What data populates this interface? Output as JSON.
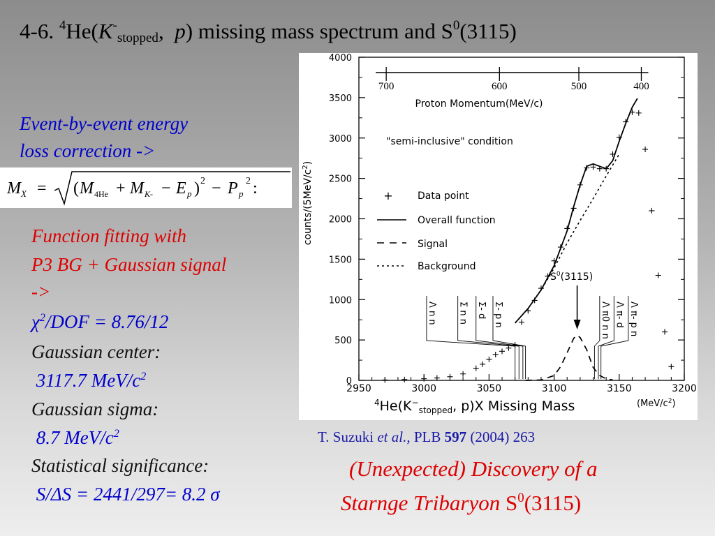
{
  "slide": {
    "title": {
      "prefix": "4-6. ",
      "sup_mass": "4",
      "he_open": "He(",
      "k": "K",
      "k_sup": "-",
      "k_sub": "stopped",
      "comma": ",  ",
      "p": "p",
      "rest": ") missing mass spectrum and S",
      "s_sup": "0",
      "tail": "(3115)"
    },
    "energy": {
      "line1": "Event-by-event energy",
      "line2": "loss correction ->"
    },
    "formula": {
      "lhs": "M",
      "lhs_sub": "X",
      "eq": " = ",
      "m4": "M",
      "m4_sub": "4He",
      "plus": " + ",
      "mk": "M",
      "mk_sub": "K-",
      "minus": " − ",
      "ep": "E",
      "ep_sub": "p",
      "close": ")",
      "sq": "2",
      "minus2": " − ",
      "pp": "P",
      "pp_sub": "p",
      "open": "(",
      "colon": ":"
    },
    "fit": {
      "line1": "Function fitting with",
      "line2": "P3 BG + Gaussian signal",
      "line3": "->",
      "chi_label": "χ",
      "chi_sup": "2",
      "chi_rest": "/DOF = 8.76/12",
      "center_label": "Gaussian center:",
      "center_value": " 3117.7 MeV/c",
      "center_sup": "2",
      "sigma_label": "Gaussian sigma:",
      "sigma_value": " 8.7 MeV/c",
      "sigma_sup": "2",
      "sig_label": "Statistical significance:",
      "sig_value": " S/ΔS = 2441/297= 8.2 ",
      "sig_sigma": "σ"
    },
    "citation": {
      "author": "T. Suzuki ",
      "etal": "et al.,",
      "journal": " PLB ",
      "volume": "597",
      "rest": " (2004) 263"
    },
    "discovery": {
      "line1": "(Unexpected) Discovery of a",
      "line2": "Starnge Tribaryon ",
      "s": "S",
      "s_sup": "0",
      "tail": "(3115)"
    }
  },
  "chart_data": {
    "type": "scatter",
    "xlim": [
      2950,
      3200
    ],
    "ylim": [
      0,
      4000
    ],
    "x_ticks": [
      2950,
      3000,
      3050,
      3100,
      3150,
      3200
    ],
    "y_ticks": [
      0,
      500,
      1000,
      1500,
      2000,
      2500,
      3000,
      3500,
      4000
    ],
    "x_tick_labels": [
      "2950",
      "3000",
      "3050",
      "3100",
      "3150",
      "3200"
    ],
    "y_tick_labels": [
      "0",
      "500",
      "1000",
      "1500",
      "2000",
      "2500",
      "3000",
      "3500",
      "4000"
    ],
    "xlabel_prefix": "4",
    "xlabel_main": "He(K",
    "xlabel_sup": "−",
    "xlabel_sub": "stopped",
    "xlabel_rest": ", p)X Missing Mass",
    "xlabel_unit": "(MeV/c",
    "xlabel_unit_sup": "2",
    "xlabel_unit_close": ")",
    "ylabel": "counts/(5MeV/c",
    "ylabel_sup": "2",
    "ylabel_close": ")",
    "top_axis": {
      "label": "Proton Momentum(MeV/c)",
      "ticks": [
        {
          "label": "700",
          "mass": 2971
        },
        {
          "label": "600",
          "mass": 3058
        },
        {
          "label": "500",
          "mass": 3119
        },
        {
          "label": "400",
          "mass": 3167
        }
      ]
    },
    "condition": "\"semi-inclusive\" condition",
    "legend": {
      "data": "Data point",
      "overall": "Overall function",
      "signal": "Signal",
      "background": "Background"
    },
    "s0_label": "S",
    "s0_sup": "0",
    "s0_rest": "(3115)",
    "s0_arrow_x": 3117.7,
    "thresholds": [
      {
        "label": "Λ n n",
        "x": 3070,
        "text_x": 3002
      },
      {
        "label": "Σ n n",
        "x": 3073,
        "text_x": 3026
      },
      {
        "label": "Σ- d",
        "x": 3076,
        "text_x": 3040
      },
      {
        "label": "Σ- p n",
        "x": 3078,
        "text_x": 3053
      },
      {
        "label": "Λ π0 n n",
        "x": 3131,
        "text_x": 3135
      },
      {
        "label": "Λ π- d",
        "x": 3134,
        "text_x": 3146
      },
      {
        "label": "Λ π- p n",
        "x": 3136,
        "text_x": 3157
      }
    ],
    "data_points": [
      {
        "x": 2970,
        "y": 5
      },
      {
        "x": 2985,
        "y": 10
      },
      {
        "x": 3000,
        "y": 20
      },
      {
        "x": 3010,
        "y": 30
      },
      {
        "x": 3020,
        "y": 45
      },
      {
        "x": 3030,
        "y": 80
      },
      {
        "x": 3040,
        "y": 150
      },
      {
        "x": 3045,
        "y": 200
      },
      {
        "x": 3050,
        "y": 260
      },
      {
        "x": 3055,
        "y": 320
      },
      {
        "x": 3060,
        "y": 360
      },
      {
        "x": 3065,
        "y": 400
      },
      {
        "x": 3070,
        "y": 440
      },
      {
        "x": 3075,
        "y": 720
      },
      {
        "x": 3080,
        "y": 860
      },
      {
        "x": 3085,
        "y": 990
      },
      {
        "x": 3090,
        "y": 1140
      },
      {
        "x": 3095,
        "y": 1290
      },
      {
        "x": 3100,
        "y": 1480
      },
      {
        "x": 3105,
        "y": 1650
      },
      {
        "x": 3110,
        "y": 1880
      },
      {
        "x": 3115,
        "y": 2130
      },
      {
        "x": 3120,
        "y": 2420
      },
      {
        "x": 3125,
        "y": 2630
      },
      {
        "x": 3130,
        "y": 2640
      },
      {
        "x": 3135,
        "y": 2620
      },
      {
        "x": 3140,
        "y": 2620
      },
      {
        "x": 3145,
        "y": 2800
      },
      {
        "x": 3150,
        "y": 3010
      },
      {
        "x": 3155,
        "y": 3200
      },
      {
        "x": 3160,
        "y": 3320
      },
      {
        "x": 3165,
        "y": 3310
      },
      {
        "x": 3170,
        "y": 2860
      },
      {
        "x": 3175,
        "y": 2100
      },
      {
        "x": 3180,
        "y": 1300
      },
      {
        "x": 3185,
        "y": 600
      },
      {
        "x": 3190,
        "y": 170
      }
    ],
    "overall_curve": [
      [
        3070,
        710
      ],
      [
        3080,
        890
      ],
      [
        3090,
        1120
      ],
      [
        3100,
        1420
      ],
      [
        3110,
        1850
      ],
      [
        3115,
        2150
      ],
      [
        3120,
        2420
      ],
      [
        3125,
        2650
      ],
      [
        3130,
        2680
      ],
      [
        3135,
        2650
      ],
      [
        3140,
        2620
      ],
      [
        3145,
        2720
      ],
      [
        3150,
        2960
      ],
      [
        3155,
        3180
      ],
      [
        3160,
        3380
      ],
      [
        3164,
        3490
      ]
    ],
    "signal_curve": [
      [
        3078,
        0
      ],
      [
        3090,
        5
      ],
      [
        3100,
        60
      ],
      [
        3105,
        170
      ],
      [
        3110,
        340
      ],
      [
        3115,
        520
      ],
      [
        3117.7,
        560
      ],
      [
        3120,
        530
      ],
      [
        3125,
        380
      ],
      [
        3130,
        160
      ],
      [
        3135,
        60
      ],
      [
        3140,
        20
      ],
      [
        3145,
        5
      ]
    ],
    "background_curve": [
      [
        3070,
        710
      ],
      [
        3080,
        890
      ],
      [
        3090,
        1120
      ],
      [
        3100,
        1390
      ],
      [
        3110,
        1700
      ],
      [
        3120,
        1980
      ],
      [
        3130,
        2250
      ],
      [
        3140,
        2530
      ],
      [
        3150,
        2800
      ]
    ]
  }
}
